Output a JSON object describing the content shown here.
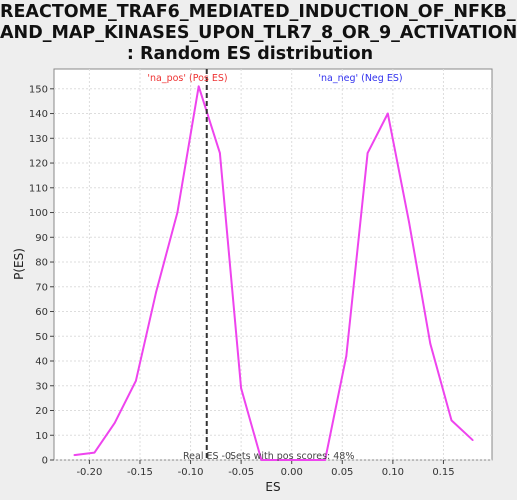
{
  "chart_data": {
    "type": "line",
    "title_lines": [
      "REACTOME_TRAF6_MEDIATED_INDUCTION_OF_NFKB_",
      "AND_MAP_KINASES_UPON_TLR7_8_OR_9_ACTIVATION",
      ": Random ES distribution"
    ],
    "xlabel": "ES",
    "ylabel": "P(ES)",
    "xlim": [
      -0.235,
      0.198
    ],
    "ylim": [
      0,
      158
    ],
    "x_ticks": [
      -0.2,
      -0.15,
      -0.1,
      -0.05,
      0.0,
      0.05,
      0.1,
      0.15
    ],
    "x_tick_labels": [
      "-0.20",
      "-0.15",
      "-0.10",
      "-0.05",
      "0.00",
      "0.05",
      "0.10",
      "0.15"
    ],
    "y_ticks": [
      0,
      10,
      20,
      30,
      40,
      50,
      60,
      70,
      80,
      90,
      100,
      110,
      120,
      130,
      140,
      150
    ],
    "y_tick_labels": [
      "0",
      "10",
      "20",
      "30",
      "40",
      "50",
      "60",
      "70",
      "80",
      "90",
      "100",
      "110",
      "120",
      "130",
      "140",
      "150"
    ],
    "grid": true,
    "series": [
      {
        "color": "#ee44ee",
        "x": [
          -0.215,
          -0.195,
          -0.175,
          -0.154,
          -0.134,
          -0.113,
          -0.092,
          -0.071,
          -0.05,
          -0.03,
          -0.01,
          0.012,
          0.033,
          0.054,
          0.075,
          0.095,
          0.116,
          0.137,
          0.158,
          0.179
        ],
        "y": [
          2,
          3,
          15,
          32,
          68,
          100,
          151,
          124,
          29,
          0,
          0,
          0,
          0,
          42,
          124,
          140,
          96,
          47,
          16,
          8
        ]
      }
    ],
    "real_es_x": -0.084,
    "real_es_label": "Real ES -0.",
    "sets_label": "Sets with pos scores: 48%",
    "annotations": [
      {
        "text": "'na_pos' (Pos ES)",
        "color": "#ee3333",
        "x": -0.103
      },
      {
        "text": "'na_neg' (Neg ES)",
        "color": "#3333ee",
        "x": 0.068
      }
    ],
    "line_color": "#ee44ee",
    "dash_color": "#333333"
  }
}
